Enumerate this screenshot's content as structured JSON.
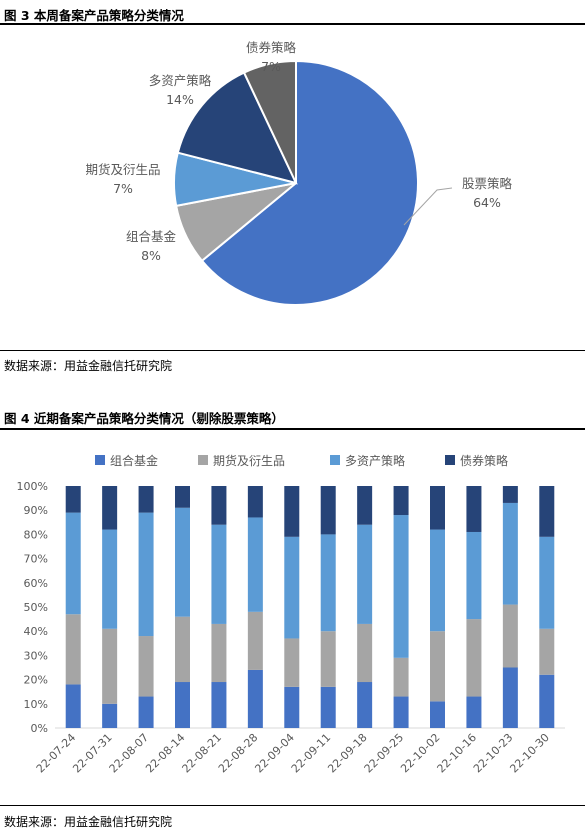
{
  "figure1": {
    "title": "图 3  本周备案产品策略分类情况",
    "source": "数据来源：用益金融信托研究院",
    "chart_data": {
      "type": "pie",
      "slices": [
        {
          "label": "股票策略",
          "value": 64,
          "pct_label": "64%",
          "color": "#4472C4"
        },
        {
          "label": "组合基金",
          "value": 8,
          "pct_label": "8%",
          "color": "#A5A5A5"
        },
        {
          "label": "期货及衍生品",
          "value": 7,
          "pct_label": "7%",
          "color": "#5B9BD5"
        },
        {
          "label": "多资产策略",
          "value": 14,
          "pct_label": "14%",
          "color": "#264478"
        },
        {
          "label": "债券策略",
          "value": 7,
          "pct_label": "7%",
          "color": "#636363"
        }
      ]
    }
  },
  "figure2": {
    "title": "图 4  近期备案产品策略分类情况（剔除股票策略）",
    "source": "数据来源：用益金融信托研究院",
    "chart_data": {
      "type": "bar",
      "stacked": "percent",
      "categories": [
        "22-07-24",
        "22-07-31",
        "22-08-07",
        "22-08-14",
        "22-08-21",
        "22-08-28",
        "22-09-04",
        "22-09-11",
        "22-09-18",
        "22-09-25",
        "22-10-02",
        "22-10-16",
        "22-10-23",
        "22-10-30"
      ],
      "series": [
        {
          "name": "组合基金",
          "color": "#4472C4",
          "values": [
            18,
            10,
            13,
            19,
            19,
            24,
            17,
            17,
            19,
            13,
            11,
            13,
            25,
            22
          ]
        },
        {
          "name": "期货及衍生品",
          "color": "#A5A5A5",
          "values": [
            29,
            31,
            25,
            27,
            24,
            24,
            20,
            23,
            24,
            16,
            29,
            32,
            26,
            19
          ]
        },
        {
          "name": "多资产策略",
          "color": "#5B9BD5",
          "values": [
            42,
            41,
            51,
            45,
            41,
            39,
            42,
            40,
            41,
            59,
            42,
            36,
            42,
            38
          ]
        },
        {
          "name": "债券策略",
          "color": "#264478",
          "values": [
            11,
            18,
            11,
            9,
            16,
            13,
            21,
            20,
            16,
            12,
            18,
            19,
            7,
            21
          ]
        }
      ],
      "yticks": [
        "0%",
        "10%",
        "20%",
        "30%",
        "40%",
        "50%",
        "60%",
        "70%",
        "80%",
        "90%",
        "100%"
      ],
      "ylim": [
        0,
        100
      ],
      "legend": "top",
      "grid": false
    }
  }
}
